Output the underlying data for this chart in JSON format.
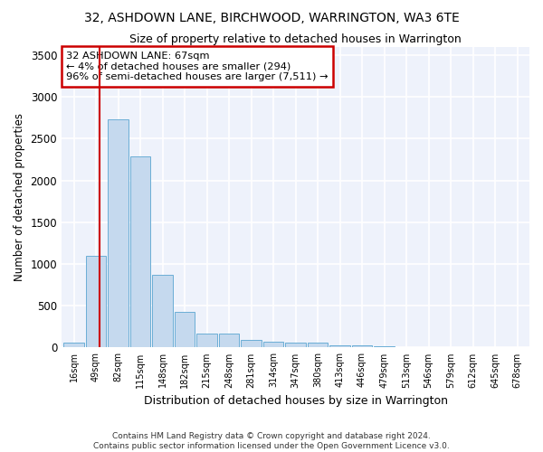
{
  "title": "32, ASHDOWN LANE, BIRCHWOOD, WARRINGTON, WA3 6TE",
  "subtitle": "Size of property relative to detached houses in Warrington",
  "xlabel": "Distribution of detached houses by size in Warrington",
  "ylabel": "Number of detached properties",
  "categories": [
    "16sqm",
    "49sqm",
    "82sqm",
    "115sqm",
    "148sqm",
    "182sqm",
    "215sqm",
    "248sqm",
    "281sqm",
    "314sqm",
    "347sqm",
    "380sqm",
    "413sqm",
    "446sqm",
    "479sqm",
    "513sqm",
    "546sqm",
    "579sqm",
    "612sqm",
    "645sqm",
    "678sqm"
  ],
  "values": [
    55,
    1100,
    2730,
    2290,
    870,
    430,
    170,
    170,
    95,
    65,
    55,
    55,
    30,
    30,
    20,
    10,
    5,
    5,
    5,
    5,
    5
  ],
  "bar_color": "#c5d9ee",
  "bar_edge_color": "#6baed6",
  "red_line_x": 1.18,
  "annotation_line1": "32 ASHDOWN LANE: 67sqm",
  "annotation_line2": "← 4% of detached houses are smaller (294)",
  "annotation_line3": "96% of semi-detached houses are larger (7,511) →",
  "annotation_box_color": "#ffffff",
  "annotation_border_color": "#cc0000",
  "ylim": [
    0,
    3600
  ],
  "yticks": [
    0,
    500,
    1000,
    1500,
    2000,
    2500,
    3000,
    3500
  ],
  "background_color": "#eef2fb",
  "grid_color": "#ffffff",
  "footer_line1": "Contains HM Land Registry data © Crown copyright and database right 2024.",
  "footer_line2": "Contains public sector information licensed under the Open Government Licence v3.0."
}
